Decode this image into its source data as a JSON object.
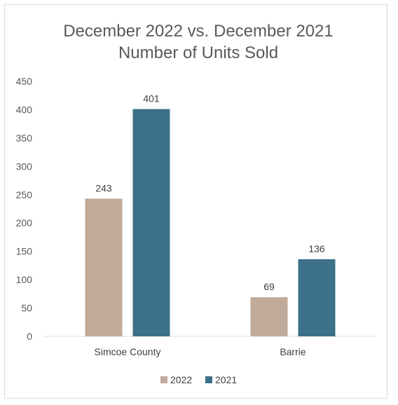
{
  "chart_data": {
    "type": "bar",
    "title": [
      "December 2022 vs. December 2021",
      "Number of Units Sold"
    ],
    "categories": [
      "Simcoe County",
      "Barrie"
    ],
    "series": [
      {
        "name": "2022",
        "values": [
          243,
          69
        ],
        "color": "#c0ab9b"
      },
      {
        "name": "2021",
        "values": [
          401,
          136
        ],
        "color": "#3d7089"
      }
    ],
    "ylim": [
      0,
      450
    ],
    "yticks": [
      0,
      50,
      100,
      150,
      200,
      250,
      300,
      350,
      400,
      450
    ],
    "grid": false,
    "legend_position": "bottom"
  }
}
